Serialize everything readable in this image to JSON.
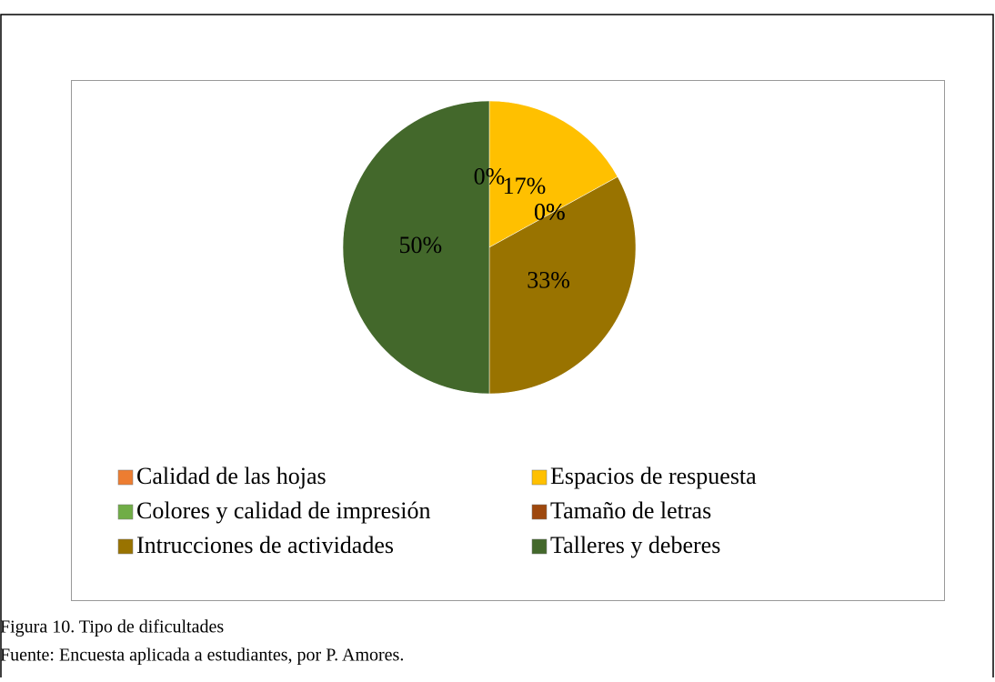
{
  "chart_data": {
    "type": "pie",
    "categories": [
      "Calidad de las hojas",
      "Espacios de respuesta",
      "Colores y calidad de impresión",
      "Tamaño de letras",
      "Intrucciones de actividades",
      "Talleres y deberes"
    ],
    "values": [
      0,
      17,
      0,
      0,
      33,
      50
    ],
    "value_labels": [
      "0%",
      "17%",
      "0%",
      "0%",
      "33%",
      "50%"
    ],
    "colors": [
      "#ed7d31",
      "#ffc000",
      "#70ad47",
      "#9e480e",
      "#997300",
      "#43682b"
    ],
    "legend": "bottom"
  },
  "caption": {
    "figure": "Figura 10. Tipo de dificultades",
    "source": "Fuente: Encuesta aplicada a estudiantes, por P. Amores."
  }
}
